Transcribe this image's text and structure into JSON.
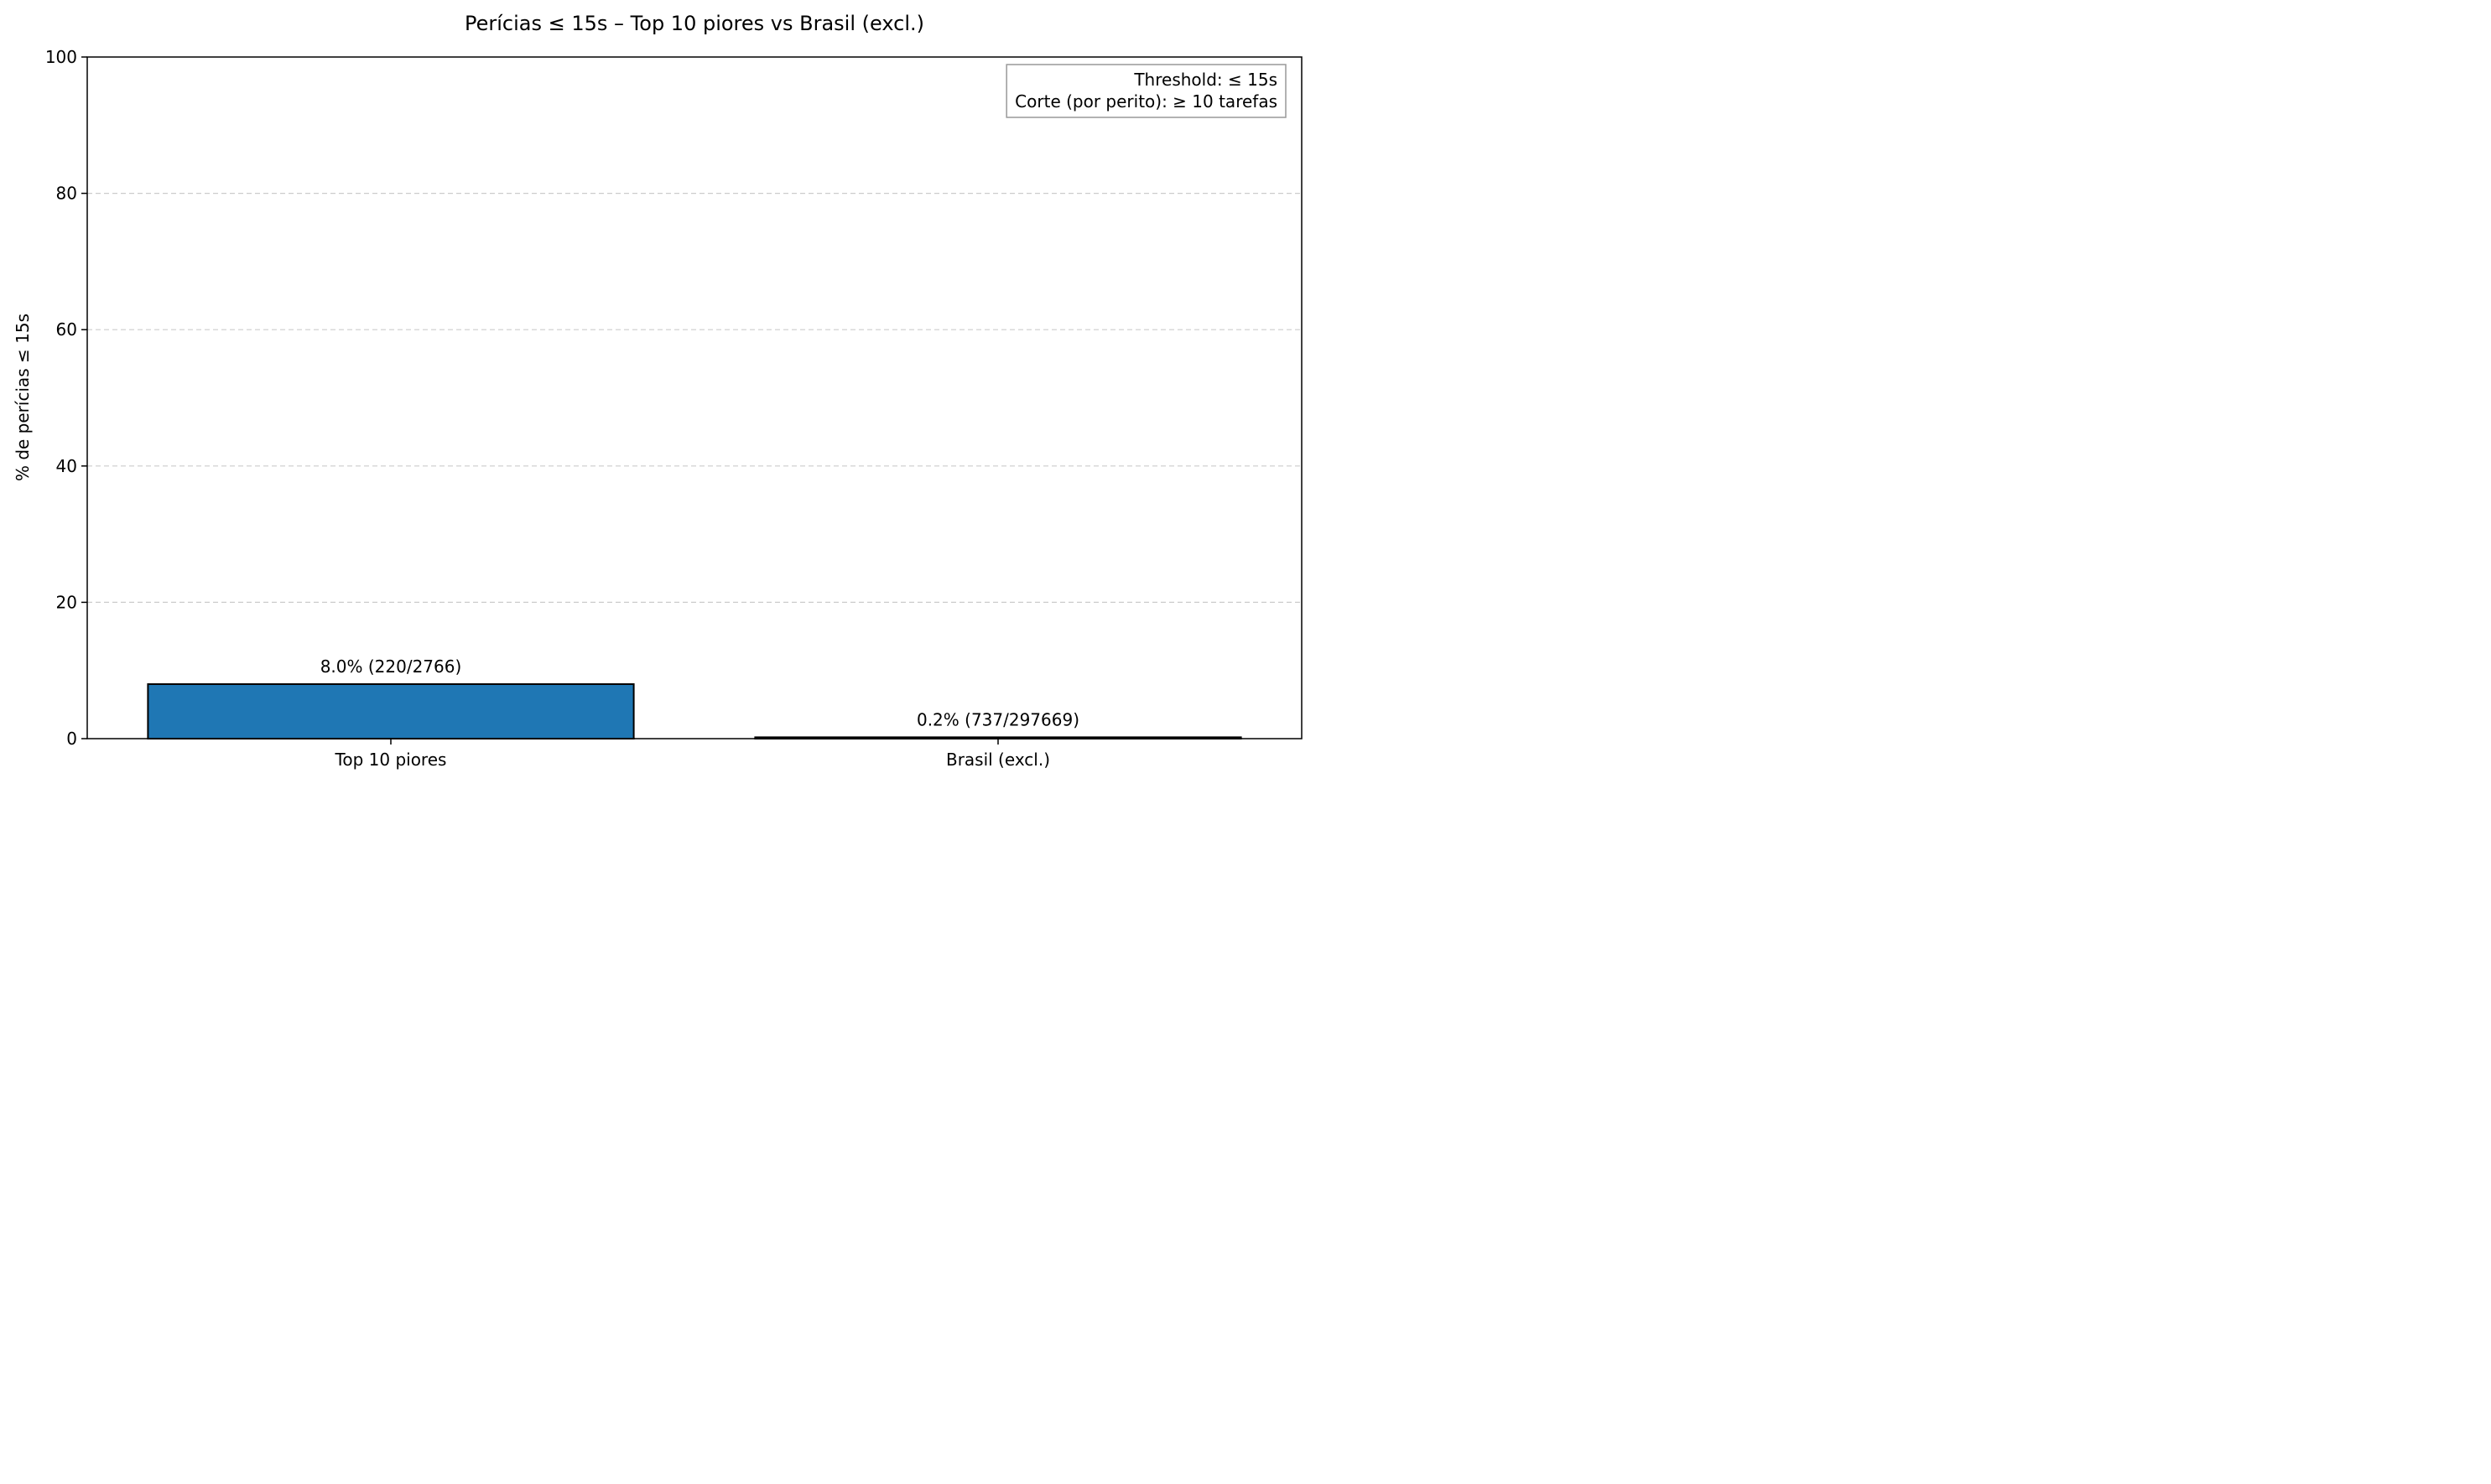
{
  "chart_data": {
    "type": "bar",
    "title": "Perícias ≤ 15s – Top 10 piores vs Brasil (excl.)",
    "xlabel": "",
    "ylabel": "% de perícias ≤ 15s",
    "categories": [
      "Top 10 piores",
      "Brasil (excl.)"
    ],
    "values": [
      8.0,
      0.2
    ],
    "bar_labels": [
      "8.0% (220/2766)",
      "0.2% (737/297669)"
    ],
    "ylim": [
      0,
      100
    ],
    "yticks": [
      0,
      20,
      40,
      60,
      80,
      100
    ],
    "grid": "y, dashed",
    "legend": "none",
    "annotation": {
      "lines": [
        "Threshold: ≤ 15s",
        "Corte (por perito): ≥ 10 tarefas"
      ],
      "placement": "top-right"
    },
    "colors": {
      "bars": [
        "#1f77b4",
        "#1f77b4"
      ],
      "bar_edge": "#000000",
      "grid": "#cccccc",
      "annotation_border": "#999999"
    }
  }
}
